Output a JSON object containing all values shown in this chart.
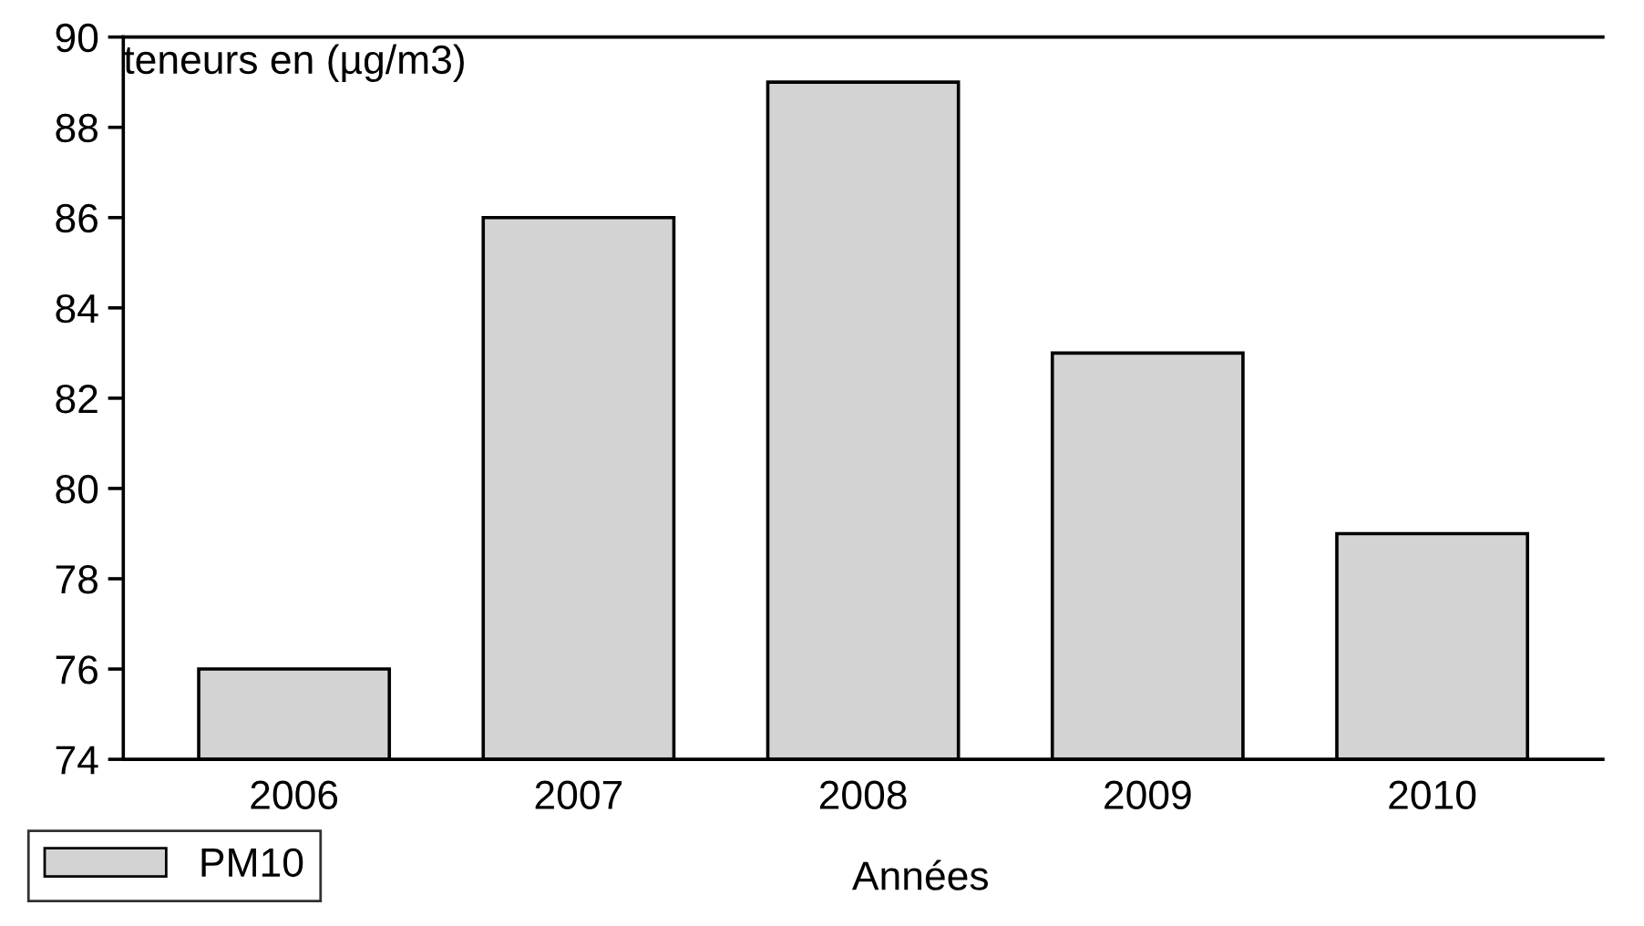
{
  "chart_data": {
    "type": "bar",
    "ylabel": "teneurs en (µg/m3)",
    "xlabel": "Années",
    "categories": [
      "2006",
      "2007",
      "2008",
      "2009",
      "2010"
    ],
    "series": [
      {
        "name": "PM10",
        "color": "#d3d3d3",
        "values": [
          76,
          86,
          89,
          83,
          79
        ]
      }
    ],
    "ylim": [
      74,
      90
    ],
    "yticks": [
      74,
      76,
      78,
      80,
      82,
      84,
      86,
      88,
      90
    ],
    "grid": false,
    "legend": "bottom left"
  }
}
